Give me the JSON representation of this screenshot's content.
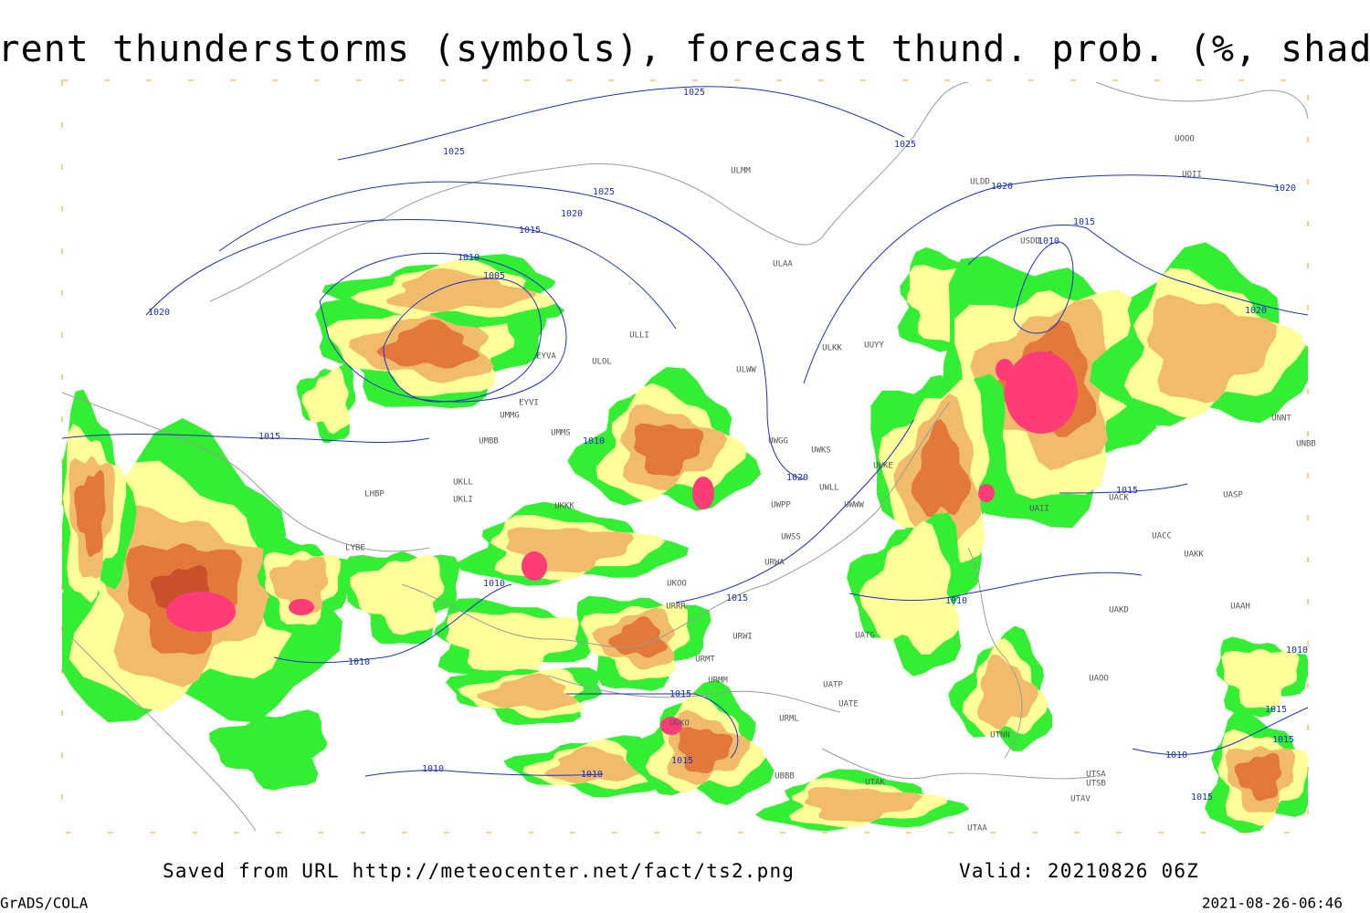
{
  "title": "Current thunderstorms (symbols), forecast thund. prob. (%, shaded)",
  "footer": {
    "saved": "Saved from URL http://meteocenter.net/fact/ts2.png",
    "valid": "Valid: 20210826 06Z",
    "software": "GrADS/COLA",
    "timestamp": "2021-08-26-06:46"
  },
  "isobar_labels": [
    "1025",
    "1025",
    "1025",
    "1025",
    "1020",
    "1020",
    "1020",
    "1015",
    "1015",
    "1010",
    "1010",
    "1005",
    "1020",
    "1020",
    "1015",
    "1010",
    "1020",
    "1015",
    "1010",
    "1015",
    "1010",
    "1010",
    "1015",
    "1015",
    "1015",
    "1010",
    "1010",
    "1015",
    "1010",
    "1015",
    "1010"
  ],
  "station_labels": [
    "ULMM",
    "ULAA",
    "UUYY",
    "ULKK",
    "ULWW",
    "ULOL",
    "ULLI",
    "EYVI",
    "UMMG",
    "UMMS",
    "UMBB",
    "UWGG",
    "UWKS",
    "UWKE",
    "UKLL",
    "UKLI",
    "UKKK",
    "UWPP",
    "UWWW",
    "UWLL",
    "UWSS",
    "URWA",
    "UKOO",
    "URRR",
    "URWI",
    "UATG",
    "UATP",
    "UATE",
    "UACC",
    "UAKK",
    "UASP",
    "UACK",
    "UAII",
    "UAKD",
    "UAAH",
    "UAOO",
    "UNBB",
    "UNNT",
    "UOOO",
    "UOII",
    "ULDD",
    "USDD",
    "UTNN",
    "UTSA",
    "UTSB",
    "UTAK",
    "UTAA",
    "UTAV",
    "UGKO",
    "UBBB",
    "URML",
    "URMT",
    "URMM",
    "LYBE",
    "LHBP",
    "EYVA"
  ]
}
